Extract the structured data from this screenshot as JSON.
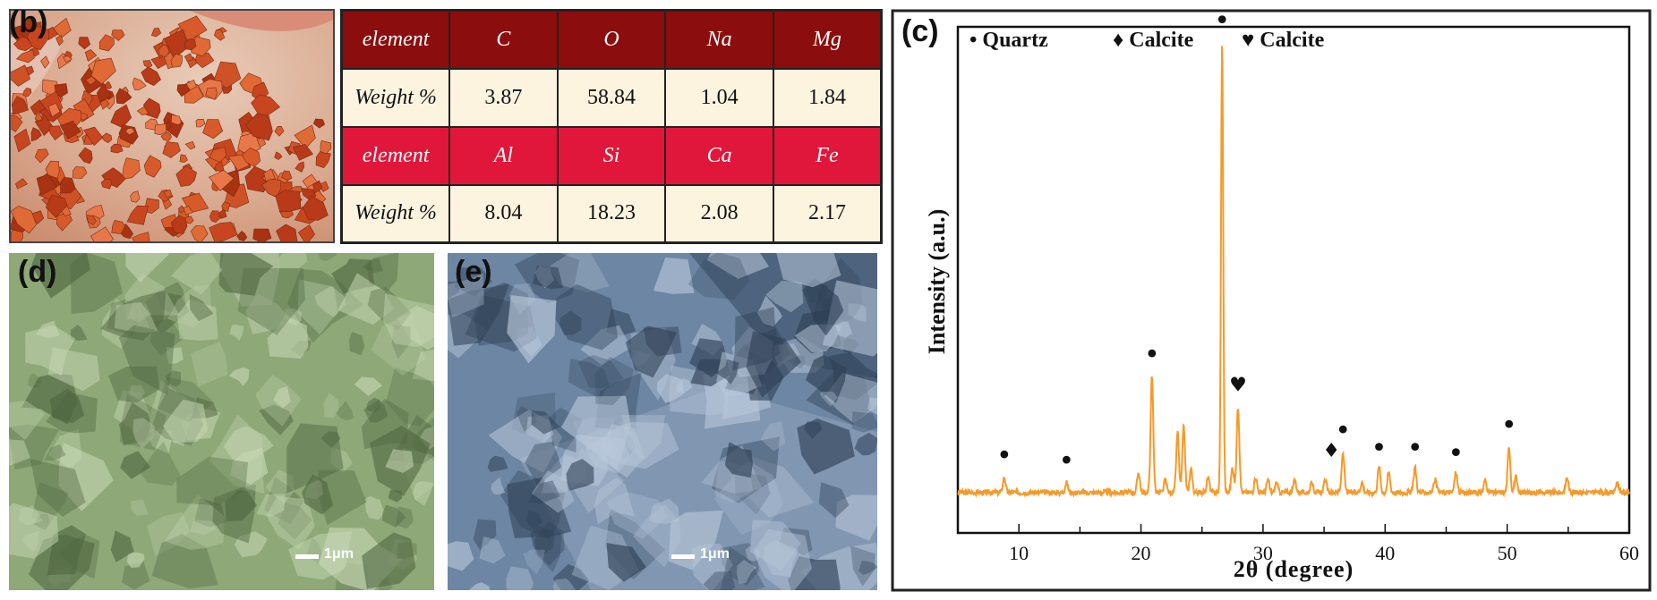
{
  "panels": {
    "b": "(b)",
    "c": "(c)",
    "d": "(d)",
    "e": "(e)"
  },
  "table": {
    "rows": [
      {
        "label": "element",
        "cells": [
          "C",
          "O",
          "Na",
          "Mg"
        ]
      },
      {
        "label": "Weight %",
        "cells": [
          "3.87",
          "58.84",
          "1.04",
          "1.84"
        ]
      },
      {
        "label": "element",
        "cells": [
          "Al",
          "Si",
          "Ca",
          "Fe"
        ]
      },
      {
        "label": "Weight %",
        "cells": [
          "8.04",
          "18.23",
          "2.08",
          "2.17"
        ]
      }
    ]
  },
  "sem": {
    "d_scale": "1μm",
    "e_scale": "1μm"
  },
  "colors": {
    "line": "#f59a2a",
    "table_dark": "#8b0d0d",
    "table_red": "#e0173a",
    "table_cell": "#fdf4e0",
    "sem_d_tint": "#8ea878",
    "sem_e_tint": "#6d86a3"
  },
  "chart_data": {
    "type": "line",
    "title": "",
    "xlabel": "2θ (degree)",
    "ylabel": "Intensity (a.u.)",
    "xlim": [
      5,
      60
    ],
    "ylim": [
      0,
      100
    ],
    "xticks": [
      10,
      20,
      30,
      40,
      50,
      60
    ],
    "grid": false,
    "legend": {
      "position": "top",
      "entries": [
        {
          "marker": "•",
          "label": "Quartz"
        },
        {
          "marker": "♦",
          "label": "Calcite"
        },
        {
          "marker": "♥",
          "label": "Calcite"
        }
      ]
    },
    "baseline": 8,
    "peaks": [
      {
        "x": 8.8,
        "y": 11
      },
      {
        "x": 13.9,
        "y": 10
      },
      {
        "x": 19.8,
        "y": 12
      },
      {
        "x": 20.9,
        "y": 31
      },
      {
        "x": 22.0,
        "y": 10.5
      },
      {
        "x": 23.0,
        "y": 20
      },
      {
        "x": 23.5,
        "y": 21
      },
      {
        "x": 24.1,
        "y": 12.5
      },
      {
        "x": 25.5,
        "y": 11
      },
      {
        "x": 26.65,
        "y": 97
      },
      {
        "x": 27.5,
        "y": 13
      },
      {
        "x": 27.95,
        "y": 25
      },
      {
        "x": 29.4,
        "y": 11
      },
      {
        "x": 30.4,
        "y": 10.5
      },
      {
        "x": 31.1,
        "y": 10
      },
      {
        "x": 32.6,
        "y": 10.5
      },
      {
        "x": 34.0,
        "y": 10
      },
      {
        "x": 35.1,
        "y": 10.5
      },
      {
        "x": 36.55,
        "y": 16
      },
      {
        "x": 38.1,
        "y": 10
      },
      {
        "x": 39.5,
        "y": 13
      },
      {
        "x": 40.3,
        "y": 12
      },
      {
        "x": 42.45,
        "y": 13
      },
      {
        "x": 44.1,
        "y": 10.5
      },
      {
        "x": 45.8,
        "y": 12
      },
      {
        "x": 48.2,
        "y": 10.5
      },
      {
        "x": 50.15,
        "y": 17
      },
      {
        "x": 50.7,
        "y": 11
      },
      {
        "x": 54.9,
        "y": 11
      },
      {
        "x": 59.0,
        "y": 10
      }
    ],
    "markers": [
      {
        "x": 8.8,
        "y": 13.5,
        "symbol": "•"
      },
      {
        "x": 13.9,
        "y": 12.5,
        "symbol": "•"
      },
      {
        "x": 20.9,
        "y": 33.5,
        "symbol": "•"
      },
      {
        "x": 26.65,
        "y": 99.5,
        "symbol": "•"
      },
      {
        "x": 27.95,
        "y": 28,
        "symbol": "♥"
      },
      {
        "x": 35.6,
        "y": 15,
        "symbol": "♦"
      },
      {
        "x": 36.55,
        "y": 18.5,
        "symbol": "•"
      },
      {
        "x": 39.5,
        "y": 15,
        "symbol": "•"
      },
      {
        "x": 42.45,
        "y": 15,
        "symbol": "•"
      },
      {
        "x": 45.8,
        "y": 14,
        "symbol": "•"
      },
      {
        "x": 50.15,
        "y": 19.5,
        "symbol": "•"
      }
    ]
  }
}
